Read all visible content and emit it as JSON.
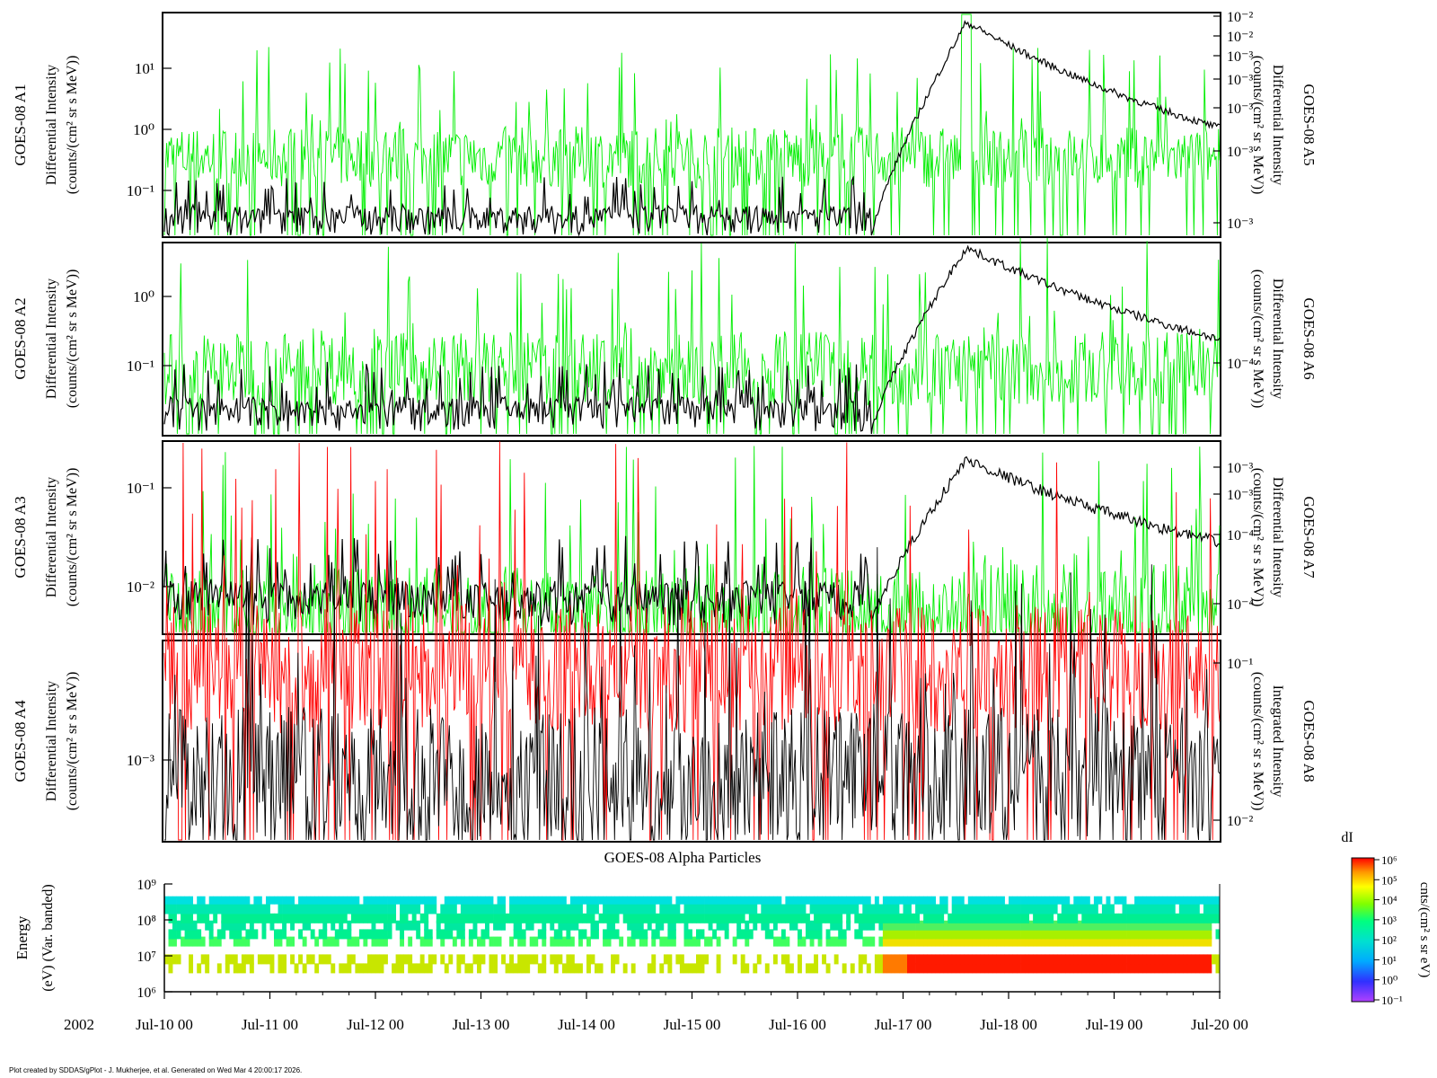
{
  "footer": "Plot created by SDDAS/gPlot - J. Mukherjee, et al.  Generated on Wed Mar 4 20:00:17 2026.",
  "colors": {
    "proton_trace": "#00ee00",
    "alpha_trace": "#000000",
    "integrated_trace": "#ff0000",
    "spectrogram_scale": [
      "#b040ff",
      "#3030ff",
      "#00aaff",
      "#00e0d0",
      "#00ff80",
      "#80ff00",
      "#ffff00",
      "#ff9900",
      "#ff0000"
    ]
  },
  "chart_data": [
    {
      "type": "line",
      "panel": "A1/A5",
      "left_label": [
        "GOES-08 A1",
        "Differential Intensity",
        "(counts/(cm² sr s MeV))"
      ],
      "right_label": [
        "GOES-08 A5",
        "Differential Intensity",
        "(counts/(cm² sr s MeV))"
      ],
      "left_ticks": [
        "10¹",
        "10⁰",
        "10⁻¹"
      ],
      "right_ticks": [
        "10⁻²",
        "10⁻²",
        "10⁻³",
        "10⁻³",
        "10⁻³",
        "10⁻³",
        "10⁻³"
      ],
      "ylim_left": [
        0.02,
        80
      ],
      "scale": "log",
      "series": [
        {
          "color": "green",
          "baseline": 0.3,
          "peak": 80,
          "peak_day": 7.6,
          "profile": "noise"
        },
        {
          "color": "black",
          "baseline": 0.02,
          "peak": 60,
          "peak_day": 7.6,
          "rise_day": 6.7,
          "profile": "event"
        }
      ]
    },
    {
      "type": "line",
      "panel": "A2/A6",
      "left_label": [
        "GOES-08 A2",
        "Differential Intensity",
        "(counts/(cm² sr s MeV))"
      ],
      "right_label": [
        "GOES-08 A6",
        "Differential Intensity",
        "(counts/(cm² sr s MeV))"
      ],
      "left_ticks": [
        "10⁰",
        "10⁻¹"
      ],
      "right_ticks": [
        "10⁻⁴"
      ],
      "ylim_left": [
        0.013,
        5
      ],
      "scale": "log",
      "series": [
        {
          "color": "green",
          "baseline": 0.08,
          "peak": 3,
          "profile": "noise"
        },
        {
          "color": "black",
          "baseline": 0.014,
          "peak": 4.5,
          "peak_day": 7.6,
          "rise_day": 6.7,
          "profile": "event"
        }
      ]
    },
    {
      "type": "line",
      "panel": "A3/A7",
      "left_label": [
        "GOES-08 A3",
        "Differential Intensity",
        "(counts/(cm² sr s MeV))"
      ],
      "right_label": [
        "GOES-08 A7",
        "Differential Intensity",
        "(counts/(cm² sr s MeV))"
      ],
      "left_ticks": [
        "10⁻¹",
        "10⁻²"
      ],
      "right_ticks": [
        "10⁻³",
        "10⁻³",
        "10⁻⁴",
        "10⁻⁴"
      ],
      "ylim_left": [
        0.003,
        0.3
      ],
      "scale": "log",
      "series": [
        {
          "color": "green",
          "baseline": 0.004,
          "peak": 0.25,
          "profile": "noise"
        },
        {
          "color": "black",
          "baseline": 0.0035,
          "peak": 0.2,
          "peak_day": 7.6,
          "rise_day": 6.7,
          "profile": "event"
        }
      ]
    },
    {
      "type": "line",
      "panel": "A4/A8",
      "left_label": [
        "GOES-08 A4",
        "Differential Intensity",
        "(counts/(cm² sr s MeV))"
      ],
      "right_label": [
        "GOES-08 A8",
        "Integrated Intensity",
        "(counts/(cm² sr s MeV))"
      ],
      "left_ticks": [
        "10⁻³"
      ],
      "right_ticks": [
        "10⁻¹",
        "10⁻²"
      ],
      "ylim_left": [
        0.0003,
        0.01
      ],
      "scale": "log",
      "series": [
        {
          "color": "red",
          "baseline": 0.005,
          "profile": "noise"
        },
        {
          "color": "black",
          "baseline": 0.0008,
          "profile": "noise"
        }
      ]
    },
    {
      "type": "heatmap",
      "panel": "spectrogram",
      "title": "GOES-08 Alpha Particles",
      "left_label": [
        "Energy",
        "(eV) (Var. banded)"
      ],
      "y_ticks": [
        "10⁹",
        "10⁸",
        "10⁷",
        "10⁶"
      ],
      "ylim": [
        1000000,
        1000000000
      ],
      "scale": "log",
      "bands_ev": [
        4500000,
        8000000,
        25000000,
        40000000,
        70000000,
        110000000,
        200000000,
        350000000
      ],
      "event_window_days": [
        6.8,
        9.9
      ],
      "colorbar": {
        "title": "dI",
        "unit": "cnts/(cm² s sr eV)",
        "ticks": [
          "10⁶",
          "10⁵",
          "10⁴",
          "10³",
          "10²",
          "10¹",
          "10⁰",
          "10⁻¹"
        ],
        "range": [
          0.1,
          1000000
        ]
      }
    }
  ],
  "x_axis": {
    "year_label": "2002",
    "tick_labels": [
      "Jul-10 00",
      "Jul-11 00",
      "Jul-12 00",
      "Jul-13 00",
      "Jul-14 00",
      "Jul-15 00",
      "Jul-16 00",
      "Jul-17 00",
      "Jul-18 00",
      "Jul-19 00",
      "Jul-20 00"
    ],
    "range_days": [
      0,
      10
    ]
  }
}
